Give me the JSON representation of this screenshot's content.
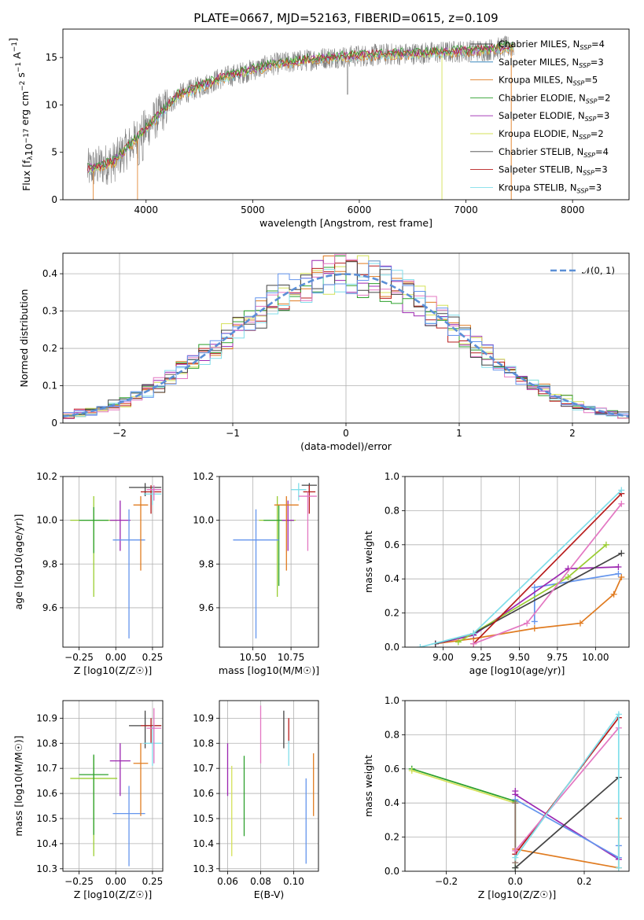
{
  "figure": {
    "title": "PLATE=0667, MJD=52163, FIBERID=0615, z=0.109"
  },
  "colors": [
    "#7f7f7f",
    "#17becf",
    "#ff7f0e",
    "#2ca02c",
    "#9467bd",
    "#bcbd22",
    "#444444",
    "#d62728",
    "#7fd3e6",
    "#e377c2",
    "#6495ed",
    "#e07b20"
  ],
  "models": [
    {
      "label": "Chabrier MILES, N",
      "sub": "SSP",
      "suffix": "=4",
      "color": "#444444"
    },
    {
      "label": "Salpeter MILES, N",
      "sub": "SSP",
      "suffix": "=3",
      "color": "#1f77b4"
    },
    {
      "label": "Kroupa MILES, N",
      "sub": "SSP",
      "suffix": "=5",
      "color": "#e07b20"
    },
    {
      "label": "Chabrier ELODIE, N",
      "sub": "SSP",
      "suffix": "=2",
      "color": "#2ca02c"
    },
    {
      "label": "Salpeter ELODIE, N",
      "sub": "SSP",
      "suffix": "=3",
      "color": "#9c27b0"
    },
    {
      "label": "Kroupa ELODIE, N",
      "sub": "SSP",
      "suffix": "=2",
      "color": "#d4e157"
    },
    {
      "label": "Chabrier STELIB, N",
      "sub": "SSP",
      "suffix": "=4",
      "color": "#444444"
    },
    {
      "label": "Salpeter STELIB, N",
      "sub": "SSP",
      "suffix": "=3",
      "color": "#b71c1c"
    },
    {
      "label": "Kroupa STELIB, N",
      "sub": "SSP",
      "suffix": "=3",
      "color": "#80deea"
    }
  ],
  "chart_data": [
    {
      "id": "spectrum",
      "type": "line",
      "title": "PLATE=0667, MJD=52163, FIBERID=0615, z=0.109",
      "xlabel": "wavelength [Angstrom, rest frame]",
      "ylabel": "Flux [f_λ10^-17 erg cm^-2 s^-1 A^-1]",
      "xlim": [
        3220,
        8530
      ],
      "ylim": [
        0,
        18
      ],
      "xticks": [
        4000,
        5000,
        6000,
        7000,
        8000
      ],
      "yticks": [
        0,
        5,
        10,
        15
      ],
      "grid": false,
      "legend": "right",
      "continuum": {
        "x": [
          3450,
          3700,
          4000,
          4300,
          4700,
          5200,
          5700,
          6200,
          6700,
          7200,
          7450
        ],
        "y": [
          3.2,
          4.0,
          7.5,
          11.0,
          12.8,
          14.3,
          15.0,
          15.3,
          15.5,
          15.8,
          16.2
        ]
      },
      "data_range": [
        3450,
        7450
      ]
    },
    {
      "id": "residuals",
      "type": "line",
      "xlabel": "(data-model)/error",
      "ylabel": "Normed distribution",
      "xlim": [
        -2.5,
        2.5
      ],
      "ylim": [
        0,
        0.455
      ],
      "xticks": [
        -2,
        -1,
        0,
        1,
        2
      ],
      "yticks": [
        0.0,
        0.1,
        0.2,
        0.3,
        0.4
      ],
      "grid": true,
      "legend": "top-right",
      "legend_label": "𝒩(0, 1)",
      "gaussian": {
        "mu": 0,
        "sigma": 1
      },
      "bin_width": 0.1
    },
    {
      "id": "age-vs-Z",
      "type": "scatter",
      "xlabel": "Z [log10(Z/Z☉)]",
      "ylabel": "age [log10(age/yr)]",
      "xlim": [
        -0.36,
        0.32
      ],
      "ylim": [
        9.42,
        10.2
      ],
      "xticks": [
        -0.25,
        0.0,
        0.25
      ],
      "xticklabels": [
        "−0.25",
        "0.00",
        "0.25"
      ],
      "yticks": [
        9.6,
        9.8,
        10.0,
        10.2
      ],
      "yticklabels": [
        "9.6",
        "9.8",
        "10.0",
        "10.2"
      ],
      "grid": true,
      "points": [
        {
          "x": -0.15,
          "y": 10.0,
          "ex": 0.16,
          "ey": [
            0.35,
            0.11
          ],
          "color": "#9acd32"
        },
        {
          "x": -0.15,
          "y": 10.0,
          "ex": 0.1,
          "ey": [
            0.15,
            0.06
          ],
          "color": "#2ca02c"
        },
        {
          "x": 0.03,
          "y": 10.0,
          "ex": 0.07,
          "ey": [
            0.14,
            0.09
          ],
          "color": "#9c27b0"
        },
        {
          "x": 0.09,
          "y": 9.91,
          "ex": 0.11,
          "ey": [
            0.45,
            0.14
          ],
          "color": "#6495ed"
        },
        {
          "x": 0.17,
          "y": 10.07,
          "ex": 0.05,
          "ey": [
            0.3,
            0.04
          ],
          "color": "#e07b20"
        },
        {
          "x": 0.2,
          "y": 10.15,
          "ex": 0.11,
          "ey": [
            0.04,
            0.02
          ],
          "color": "#444444"
        },
        {
          "x": 0.24,
          "y": 10.13,
          "ex": 0.07,
          "ey": [
            0.1,
            0.03
          ],
          "color": "#b71c1c"
        },
        {
          "x": 0.25,
          "y": 10.12,
          "ex": 0.06,
          "ey": [
            0.05,
            0.03
          ],
          "color": "#80deea"
        },
        {
          "x": 0.26,
          "y": 10.14,
          "ex": 0.05,
          "ey": [
            0.05,
            0.02
          ],
          "color": "#e377c2"
        }
      ]
    },
    {
      "id": "age-vs-mass",
      "type": "scatter",
      "xlabel": "mass [log10(M/M☉)]",
      "xlim": [
        10.28,
        10.93
      ],
      "ylim": [
        9.42,
        10.2
      ],
      "xticks": [
        10.5,
        10.75
      ],
      "xticklabels": [
        "10.50",
        "10.75"
      ],
      "yticks": [
        9.6,
        9.8,
        10.0,
        10.2
      ],
      "yticklabels": [
        "9.6",
        "9.8",
        "10.0",
        "10.2"
      ],
      "grid": true,
      "points": [
        {
          "x": 10.66,
          "y": 10.0,
          "ex": 0.12,
          "ey": [
            0.35,
            0.11
          ],
          "color": "#9acd32"
        },
        {
          "x": 10.67,
          "y": 10.0,
          "ex": 0.1,
          "ey": [
            0.3,
            0.07
          ],
          "color": "#2ca02c"
        },
        {
          "x": 10.73,
          "y": 10.0,
          "ex": 0.04,
          "ey": [
            0.14,
            0.09
          ],
          "color": "#9c27b0"
        },
        {
          "x": 10.52,
          "y": 9.91,
          "ex": 0.15,
          "ey": [
            0.45,
            0.14
          ],
          "color": "#6495ed"
        },
        {
          "x": 10.72,
          "y": 10.07,
          "ex": 0.08,
          "ey": [
            0.3,
            0.04
          ],
          "color": "#e07b20"
        },
        {
          "x": 10.87,
          "y": 10.16,
          "ex": 0.05,
          "ey": [
            0.03,
            0.01
          ],
          "color": "#444444"
        },
        {
          "x": 10.87,
          "y": 10.13,
          "ex": 0.04,
          "ey": [
            0.1,
            0.03
          ],
          "color": "#b71c1c"
        },
        {
          "x": 10.8,
          "y": 10.14,
          "ex": 0.05,
          "ey": [
            0.05,
            0.03
          ],
          "color": "#80deea"
        },
        {
          "x": 10.86,
          "y": 10.11,
          "ex": 0.06,
          "ey": [
            0.25,
            0.02
          ],
          "color": "#e377c2"
        }
      ]
    },
    {
      "id": "weight-vs-age",
      "type": "line",
      "xlabel": "age [log10(age/yr)]",
      "ylabel": "mass weight",
      "xlim": [
        8.75,
        10.22
      ],
      "ylim": [
        0,
        1
      ],
      "xticks": [
        9.0,
        9.25,
        9.5,
        9.75,
        10.0
      ],
      "xticklabels": [
        "9.00",
        "9.25",
        "9.50",
        "9.75",
        "10.00"
      ],
      "yticks": [
        0.0,
        0.2,
        0.4,
        0.6,
        0.8,
        1.0
      ],
      "yticklabels": [
        "0.0",
        "0.2",
        "0.4",
        "0.6",
        "0.8",
        "1.0"
      ],
      "grid": true,
      "series": [
        {
          "color": "#e07b20",
          "x": [
            8.95,
            9.2,
            9.6,
            9.9,
            10.12,
            10.17
          ],
          "y": [
            0.02,
            0.05,
            0.11,
            0.14,
            0.31,
            0.41
          ]
        },
        {
          "color": "#6495ed",
          "x": [
            9.6,
            9.6,
            10.15
          ],
          "y": [
            0.15,
            0.35,
            0.43
          ]
        },
        {
          "color": "#9c27b0",
          "x": [
            8.95,
            9.2,
            9.82,
            10.15
          ],
          "y": [
            0.02,
            0.07,
            0.46,
            0.47
          ]
        },
        {
          "color": "#9acd32",
          "x": [
            9.1,
            9.82,
            10.07
          ],
          "y": [
            0.03,
            0.41,
            0.6
          ]
        },
        {
          "color": "#444444",
          "x": [
            8.95,
            9.2,
            10.17
          ],
          "y": [
            0.02,
            0.08,
            0.55
          ]
        },
        {
          "color": "#b71c1c",
          "x": [
            9.2,
            10.17
          ],
          "y": [
            0.02,
            0.9
          ]
        },
        {
          "color": "#e377c2",
          "x": [
            9.2,
            9.55,
            10.17
          ],
          "y": [
            0.02,
            0.14,
            0.84
          ]
        },
        {
          "color": "#80deea",
          "x": [
            8.85,
            9.2,
            10.17
          ],
          "y": [
            0.0,
            0.08,
            0.92
          ]
        }
      ]
    },
    {
      "id": "mass-vs-Z",
      "type": "scatter",
      "xlabel": "Z [log10(Z/Z☉)]",
      "ylabel": "mass [log10(M/M☉)]",
      "xlim": [
        -0.36,
        0.32
      ],
      "ylim": [
        10.29,
        10.97
      ],
      "xticks": [
        -0.25,
        0.0,
        0.25
      ],
      "xticklabels": [
        "−0.25",
        "0.00",
        "0.25"
      ],
      "yticks": [
        10.3,
        10.4,
        10.5,
        10.6,
        10.7,
        10.8,
        10.9
      ],
      "grid": true,
      "points": [
        {
          "x": -0.15,
          "y": 10.66,
          "ex": 0.16,
          "ey": [
            0.31,
            0.09
          ],
          "color": "#9acd32"
        },
        {
          "x": -0.15,
          "y": 10.675,
          "ex": 0.1,
          "ey": [
            0.24,
            0.08
          ],
          "color": "#2ca02c"
        },
        {
          "x": 0.03,
          "y": 10.73,
          "ex": 0.07,
          "ey": [
            0.14,
            0.07
          ],
          "color": "#9c27b0"
        },
        {
          "x": 0.09,
          "y": 10.52,
          "ex": 0.11,
          "ey": [
            0.21,
            0.11
          ],
          "color": "#6495ed"
        },
        {
          "x": 0.17,
          "y": 10.72,
          "ex": 0.05,
          "ey": [
            0.21,
            0.08
          ],
          "color": "#e07b20"
        },
        {
          "x": 0.2,
          "y": 10.87,
          "ex": 0.11,
          "ey": [
            0.09,
            0.06
          ],
          "color": "#444444"
        },
        {
          "x": 0.24,
          "y": 10.87,
          "ex": 0.07,
          "ey": [
            0.07,
            0.03
          ],
          "color": "#b71c1c"
        },
        {
          "x": 0.25,
          "y": 10.8,
          "ex": 0.06,
          "ey": [
            0.09,
            0.07
          ],
          "color": "#80deea"
        },
        {
          "x": 0.26,
          "y": 10.86,
          "ex": 0.05,
          "ey": [
            0.14,
            0.08
          ],
          "color": "#e377c2"
        }
      ]
    },
    {
      "id": "mass-vs-EBV",
      "type": "scatter",
      "xlabel": "E(B-V)",
      "xlim": [
        0.055,
        0.115
      ],
      "ylim": [
        10.29,
        10.97
      ],
      "xticks": [
        0.06,
        0.08,
        0.1
      ],
      "xticklabels": [
        "0.06",
        "0.08",
        "0.10"
      ],
      "yticks": [
        10.3,
        10.4,
        10.5,
        10.6,
        10.7,
        10.8,
        10.9
      ],
      "grid": true,
      "points": [
        {
          "x": 0.06,
          "y": 10.7,
          "ex": 0,
          "ey": [
            0.11,
            0.1
          ],
          "color": "#9c27b0"
        },
        {
          "x": 0.0625,
          "y": 10.53,
          "ex": 0,
          "ey": [
            0.18,
            0.18
          ],
          "color": "#d4e157"
        },
        {
          "x": 0.07,
          "y": 10.59,
          "ex": 0,
          "ey": [
            0.16,
            0.16
          ],
          "color": "#2ca02c"
        },
        {
          "x": 0.08,
          "y": 10.83,
          "ex": 0,
          "ey": [
            0.11,
            0.12
          ],
          "color": "#e377c2"
        },
        {
          "x": 0.094,
          "y": 10.87,
          "ex": 0,
          "ey": [
            0.09,
            0.06
          ],
          "color": "#444444"
        },
        {
          "x": 0.097,
          "y": 10.87,
          "ex": 0,
          "ey": [
            0.07,
            0.03
          ],
          "color": "#b71c1c"
        },
        {
          "x": 0.097,
          "y": 10.76,
          "ex": 0,
          "ey": [
            0.05,
            0.05
          ],
          "color": "#80deea"
        },
        {
          "x": 0.1075,
          "y": 10.49,
          "ex": 0,
          "ey": [
            0.17,
            0.17
          ],
          "color": "#6495ed"
        },
        {
          "x": 0.112,
          "y": 10.63,
          "ex": 0,
          "ey": [
            0.12,
            0.13
          ],
          "color": "#e07b20"
        }
      ]
    },
    {
      "id": "weight-vs-Z",
      "type": "line",
      "xlabel": "Z [log10(Z/Z☉)]",
      "ylabel": "mass weight",
      "xlim": [
        -0.32,
        0.33
      ],
      "ylim": [
        0,
        1
      ],
      "xticks": [
        -0.2,
        0.0,
        0.2
      ],
      "xticklabels": [
        "−0.2",
        "0.0",
        "0.2"
      ],
      "yticks": [
        0.0,
        0.2,
        0.4,
        0.6,
        0.8,
        1.0
      ],
      "yticklabels": [
        "0.0",
        "0.2",
        "0.4",
        "0.6",
        "0.8",
        "1.0"
      ],
      "grid": true,
      "series": [
        {
          "color": "#2ca02c",
          "x": [
            -0.3,
            0.0,
            0.0
          ],
          "y": [
            0.6,
            0.41,
            0.02
          ]
        },
        {
          "color": "#d4e157",
          "x": [
            -0.3,
            0.0
          ],
          "y": [
            0.59,
            0.4
          ]
        },
        {
          "color": "#9c27b0",
          "x": [
            0.0,
            0.0,
            0.3
          ],
          "y": [
            0.47,
            0.45,
            0.07
          ]
        },
        {
          "color": "#6495ed",
          "x": [
            0.0,
            0.3,
            0.3
          ],
          "y": [
            0.42,
            0.08,
            0.15
          ]
        },
        {
          "color": "#e07b20",
          "x": [
            0.0,
            0.3,
            0.3
          ],
          "y": [
            0.13,
            0.02,
            0.31
          ]
        },
        {
          "color": "#8d6e63",
          "x": [
            0.0,
            0.0
          ],
          "y": [
            0.05,
            0.4
          ]
        },
        {
          "color": "#444444",
          "x": [
            0.0,
            0.3
          ],
          "y": [
            0.02,
            0.55
          ]
        },
        {
          "color": "#b71c1c",
          "x": [
            0.0,
            0.3
          ],
          "y": [
            0.1,
            0.9
          ]
        },
        {
          "color": "#e377c2",
          "x": [
            0.0,
            0.3
          ],
          "y": [
            0.12,
            0.84
          ]
        },
        {
          "color": "#80deea",
          "x": [
            0.0,
            0.3,
            0.3
          ],
          "y": [
            0.08,
            0.92,
            0.02
          ]
        }
      ]
    }
  ]
}
